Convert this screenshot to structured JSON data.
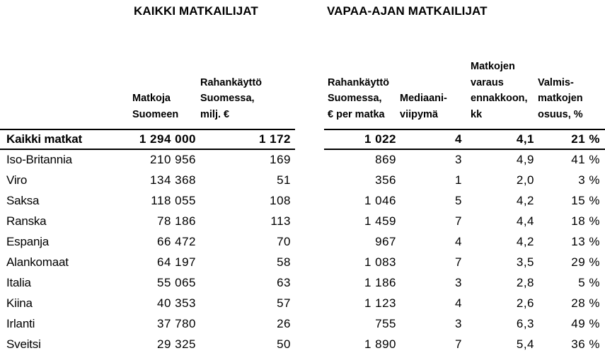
{
  "colors": {
    "text": "#000000",
    "background": "#ffffff",
    "rule": "#000000"
  },
  "chart_data": {
    "type": "table",
    "section_titles": [
      "KAIKKI MATKAILIJAT",
      "VAPAA-AJAN MATKAILIJAT"
    ],
    "section_column_spans": {
      "KAIKKI MATKAILIJAT": [
        "Matkoja Suomeen",
        "Rahankäyttö Suomessa, milj. €"
      ],
      "VAPAA-AJAN MATKAILIJAT": [
        "Rahankäyttö Suomessa, € per matka",
        "Mediaaniviipymä",
        "Matkojen varaus ennakkoon, kk",
        "Valmismatkojen osuus, %"
      ]
    },
    "column_headers": [
      "Matkoja\nSuomeen",
      "Rahankäyttö\nSuomessa,\nmilj. €",
      "Rahankäyttö\nSuomessa,\n€ per matka",
      "Mediaani-\nviipymä",
      "Matkojen\nvaraus\nennakkoon,\nkk",
      "Valmis-\nmatkojen\nosuus, %"
    ],
    "total_row": {
      "label": "Kaikki matkat",
      "values": [
        "1 294 000",
        "1 172",
        "1 022",
        "4",
        "4,1",
        "21 %"
      ]
    },
    "rows": [
      {
        "label": "Iso-Britannia",
        "values": [
          "210 956",
          "169",
          "869",
          "3",
          "4,9",
          "41 %"
        ]
      },
      {
        "label": "Viro",
        "values": [
          "134 368",
          "51",
          "356",
          "1",
          "2,0",
          "3 %"
        ]
      },
      {
        "label": "Saksa",
        "values": [
          "118 055",
          "108",
          "1 046",
          "5",
          "4,2",
          "15 %"
        ]
      },
      {
        "label": "Ranska",
        "values": [
          "78 186",
          "113",
          "1 459",
          "7",
          "4,4",
          "18 %"
        ]
      },
      {
        "label": "Espanja",
        "values": [
          "66 472",
          "70",
          "967",
          "4",
          "4,2",
          "13 %"
        ]
      },
      {
        "label": "Alankomaat",
        "values": [
          "64 197",
          "58",
          "1 083",
          "7",
          "3,5",
          "29 %"
        ]
      },
      {
        "label": "Italia",
        "values": [
          "55 065",
          "63",
          "1 186",
          "3",
          "2,8",
          "5 %"
        ]
      },
      {
        "label": "Kiina",
        "values": [
          "40 353",
          "57",
          "1 123",
          "4",
          "2,6",
          "28 %"
        ]
      },
      {
        "label": "Irlanti",
        "values": [
          "37 780",
          "26",
          "755",
          "3",
          "6,3",
          "49 %"
        ]
      },
      {
        "label": "Sveitsi",
        "values": [
          "29 325",
          "50",
          "1 890",
          "7",
          "5,4",
          "36 %"
        ]
      }
    ]
  }
}
